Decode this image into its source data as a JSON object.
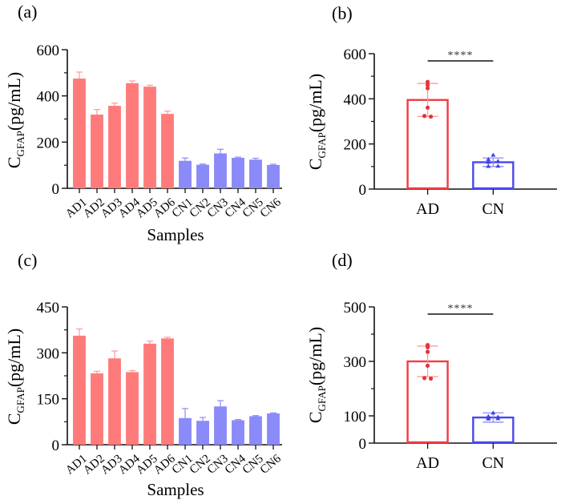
{
  "figure": {
    "colors": {
      "ad_fill": "#FF7B7B",
      "cn_fill": "#8A8AF8",
      "ad_outline": "#F03C44",
      "cn_outline": "#4848F0",
      "ad_point": "#E8323C",
      "cn_point": "#4040E8",
      "ad_error": "#FF9A9A",
      "cn_error": "#8A8AF8",
      "axis": "#111111"
    }
  },
  "chart_data": [
    {
      "panel": "(a)",
      "type": "bar",
      "title": "",
      "xlabel": "Samples",
      "ylabel_main": "C",
      "ylabel_sub": "GFAP",
      "ylabel_unit": "(pg/mL)",
      "ylim": [
        0,
        600
      ],
      "yticks": [
        0,
        200,
        400,
        600
      ],
      "yminor": [
        100,
        300,
        500
      ],
      "grid": false,
      "categories": [
        "AD1",
        "AD2",
        "AD3",
        "AD4",
        "AD5",
        "AD6",
        "CN1",
        "CN2",
        "CN3",
        "CN4",
        "CN5",
        "CN6"
      ],
      "groups": [
        "AD",
        "AD",
        "AD",
        "AD",
        "AD",
        "AD",
        "CN",
        "CN",
        "CN",
        "CN",
        "CN",
        "CN"
      ],
      "values": [
        475,
        319,
        357,
        455,
        440,
        322,
        119,
        102,
        151,
        132,
        124,
        101
      ],
      "errors": [
        28,
        22,
        12,
        10,
        6,
        12,
        12,
        3,
        18,
        3,
        6,
        3
      ]
    },
    {
      "panel": "(b)",
      "type": "bar",
      "title": "",
      "xlabel": "",
      "ylabel_main": "C",
      "ylabel_sub": "GFAP",
      "ylabel_unit": "(pg/mL)",
      "ylim": [
        0,
        600
      ],
      "yticks": [
        0,
        200,
        400,
        600
      ],
      "yminor": [
        100,
        300,
        500
      ],
      "grid": false,
      "categories": [
        "AD",
        "CN"
      ],
      "values": [
        395,
        119
      ],
      "sd": [
        73,
        19
      ],
      "points": [
        [
          475,
          461,
          447,
          361,
          324,
          321
        ],
        [
          151,
          132,
          124,
          119,
          102,
          101
        ]
      ],
      "significance": "****"
    },
    {
      "panel": "(c)",
      "type": "bar",
      "title": "",
      "xlabel": "Samples",
      "ylabel_main": "C",
      "ylabel_sub": "GFAP",
      "ylabel_unit": "(pg/mL)",
      "ylim": [
        0,
        450
      ],
      "yticks": [
        0,
        150,
        300,
        450
      ],
      "yminor": [
        75,
        225,
        375
      ],
      "grid": false,
      "categories": [
        "AD1",
        "AD2",
        "AD3",
        "AD4",
        "AD5",
        "AD6",
        "CN1",
        "CN2",
        "CN3",
        "CN4",
        "CN5",
        "CN6"
      ],
      "groups": [
        "AD",
        "AD",
        "AD",
        "AD",
        "AD",
        "AD",
        "CN",
        "CN",
        "CN",
        "CN",
        "CN",
        "CN"
      ],
      "values": [
        356,
        233,
        282,
        237,
        330,
        347,
        87,
        78,
        125,
        80,
        93,
        102
      ],
      "errors": [
        22,
        7,
        24,
        5,
        8,
        4,
        31,
        11,
        19,
        2,
        2,
        2
      ]
    },
    {
      "panel": "(d)",
      "type": "bar",
      "title": "",
      "xlabel": "",
      "ylabel_main": "C",
      "ylabel_sub": "GFAP",
      "ylabel_unit": "(pg/mL)",
      "ylim": [
        0,
        500
      ],
      "yticks": [
        0,
        100,
        300,
        500
      ],
      "yminor": [
        200,
        400
      ],
      "grid": false,
      "categories": [
        "AD",
        "CN"
      ],
      "values": [
        300,
        94
      ],
      "sd": [
        56,
        17
      ],
      "points": [
        [
          360,
          352,
          335,
          284,
          239,
          237
        ],
        [
          111,
          98,
          96,
          93,
          90,
          89
        ]
      ],
      "significance": "****"
    }
  ]
}
